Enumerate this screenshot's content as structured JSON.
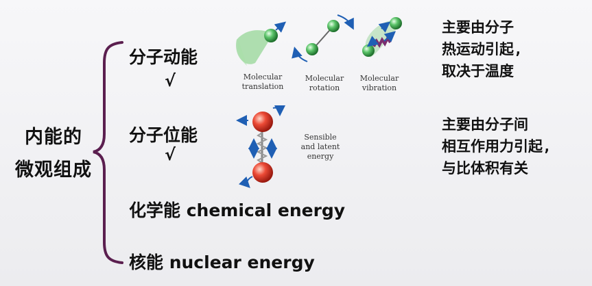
{
  "title": {
    "line1": "内能的",
    "line2": "微观组成"
  },
  "items": [
    {
      "label": "分子动能",
      "check": "√"
    },
    {
      "label": "分子位能",
      "check": "√"
    },
    {
      "label": "化学能 chemical energy"
    },
    {
      "label": "核能 nuclear energy"
    }
  ],
  "kinetic_captions": [
    {
      "line1": "Molecular",
      "line2": "translation"
    },
    {
      "line1": "Molecular",
      "line2": "rotation"
    },
    {
      "line1": "Molecular",
      "line2": "vibration"
    }
  ],
  "potential_caption": {
    "line1": "Sensible",
    "line2": "and latent",
    "line3": "energy"
  },
  "notes": {
    "kinetic": [
      "主要由分子",
      "热运动引起,",
      "取决于温度"
    ],
    "potential": [
      "主要由分子间",
      "相互作用力引起,",
      "与比体积有关"
    ]
  },
  "colors": {
    "bracket": "#5b1f4f",
    "green_sphere": "#3fa34d",
    "red_sphere": "#e23b2b",
    "arrow": "#1f5fb4",
    "spring": "#7a2d6e"
  }
}
